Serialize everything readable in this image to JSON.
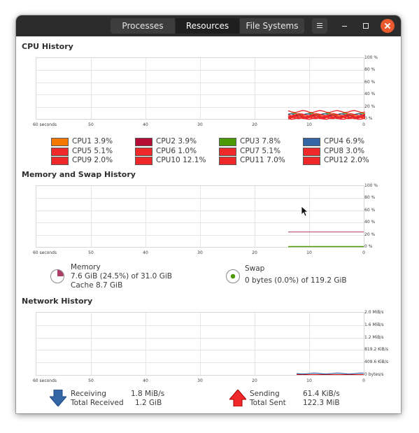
{
  "titlebar": {
    "tabs": [
      {
        "label": "Processes",
        "active": false
      },
      {
        "label": "Resources",
        "active": true
      },
      {
        "label": "File Systems",
        "active": false
      }
    ]
  },
  "cpu": {
    "title": "CPU History",
    "x_ticks": [
      "60 seconds",
      "50",
      "40",
      "30",
      "20",
      "10",
      "0"
    ],
    "y_ticks": [
      "100 %",
      "80 %",
      "60 %",
      "40 %",
      "20 %",
      "0 %"
    ],
    "cores": [
      {
        "label": "CPU1",
        "value": "3.9%",
        "color": "#f57900"
      },
      {
        "label": "CPU2",
        "value": "3.9%",
        "color": "#b40d36"
      },
      {
        "label": "CPU3",
        "value": "7.8%",
        "color": "#4e9a06"
      },
      {
        "label": "CPU4",
        "value": "6.9%",
        "color": "#3465a4"
      },
      {
        "label": "CPU5",
        "value": "5.1%",
        "color": "#ef2929"
      },
      {
        "label": "CPU6",
        "value": "1.0%",
        "color": "#ef2929"
      },
      {
        "label": "CPU7",
        "value": "5.1%",
        "color": "#ef2929"
      },
      {
        "label": "CPU8",
        "value": "3.0%",
        "color": "#ef2929"
      },
      {
        "label": "CPU9",
        "value": "2.0%",
        "color": "#ef2929"
      },
      {
        "label": "CPU10",
        "value": "12.1%",
        "color": "#ef2929"
      },
      {
        "label": "CPU11",
        "value": "7.0%",
        "color": "#ef2929"
      },
      {
        "label": "CPU12",
        "value": "2.0%",
        "color": "#ef2929"
      }
    ]
  },
  "memory": {
    "title": "Memory and Swap History",
    "x_ticks": [
      "60 seconds",
      "50",
      "40",
      "30",
      "20",
      "10",
      "0"
    ],
    "y_ticks": [
      "100 %",
      "80 %",
      "60 %",
      "40 %",
      "20 %",
      "0 %"
    ],
    "mem_label": "Memory",
    "mem_usage": "7.6 GiB (24.5%) of 31.0 GiB",
    "mem_cache": "Cache 8.7 GiB",
    "mem_fraction": 0.245,
    "mem_color": "#ad3e68",
    "swap_label": "Swap",
    "swap_usage": "0 bytes (0.0%) of 119.2 GiB",
    "swap_fraction": 0.0,
    "swap_color": "#4e9a06"
  },
  "network": {
    "title": "Network History",
    "x_ticks": [
      "60 seconds",
      "50",
      "40",
      "30",
      "20",
      "10",
      "0"
    ],
    "y_ticks": [
      "2.0 MiB/s",
      "1.6 MiB/s",
      "1.2 MiB/s",
      "819.2 KiB/s",
      "409.6 KiB/s",
      "0 bytes/s"
    ],
    "receiving_label": "Receiving",
    "receiving_value": "1.8 MiB/s",
    "total_received_label": "Total Received",
    "total_received_value": "1.2 GiB",
    "sending_label": "Sending",
    "sending_value": "61.4 KiB/s",
    "total_sent_label": "Total Sent",
    "total_sent_value": "122.3 MiB",
    "receiving_color": "#3465a4",
    "sending_color": "#cc0000"
  }
}
